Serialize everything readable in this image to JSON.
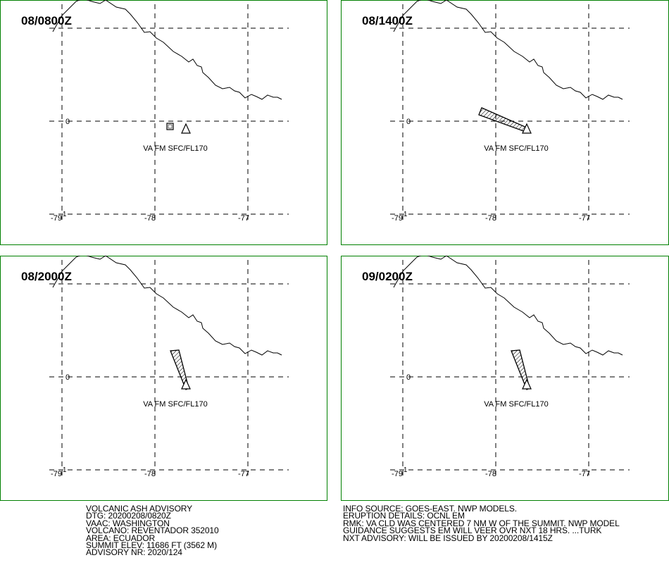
{
  "panels": [
    {
      "time_label": "08/0800Z",
      "cloud_label": "VA FM SFC/FL170",
      "ash_shape": "box"
    },
    {
      "time_label": "08/1400Z",
      "cloud_label": "VA FM SFC/FL170",
      "ash_shape": "plume-west"
    },
    {
      "time_label": "08/2000Z",
      "cloud_label": "VA FM SFC/FL170",
      "ash_shape": "plume-northwest"
    },
    {
      "time_label": "09/0200Z",
      "cloud_label": "VA FM SFC/FL170",
      "ash_shape": "plume-northwest"
    }
  ],
  "axes": {
    "lon_labels": [
      "-79",
      "-78",
      "-77"
    ],
    "lat_labels": [
      "0"
    ],
    "lat_label_bottom": "-1"
  },
  "colors": {
    "panel_border": "#008000",
    "lines": "#000000"
  },
  "advisory_left": [
    "VOLCANIC ASH ADVISORY",
    "DTG: 20200208/0820Z",
    "VAAC: WASHINGTON",
    "VOLCANO: REVENTADOR 352010",
    "AREA: ECUADOR",
    "SUMMIT ELEV: 11686 FT (3562 M)",
    "ADVISORY NR: 2020/124"
  ],
  "advisory_right": [
    "INFO SOURCE: GOES-EAST. NWP MODELS.",
    "ERUPTION DETAILS: OCNL EM",
    "RMK: VA CLD WAS CENTERED 7 NM W OF THE SUMMIT. NWP MODEL",
    "GUIDANCE SUGGESTS EM WILL VEER OVR NXT 18 HRS. ...TURK",
    "NXT ADVISORY: WILL BE ISSUED BY 20200208/1415Z"
  ]
}
